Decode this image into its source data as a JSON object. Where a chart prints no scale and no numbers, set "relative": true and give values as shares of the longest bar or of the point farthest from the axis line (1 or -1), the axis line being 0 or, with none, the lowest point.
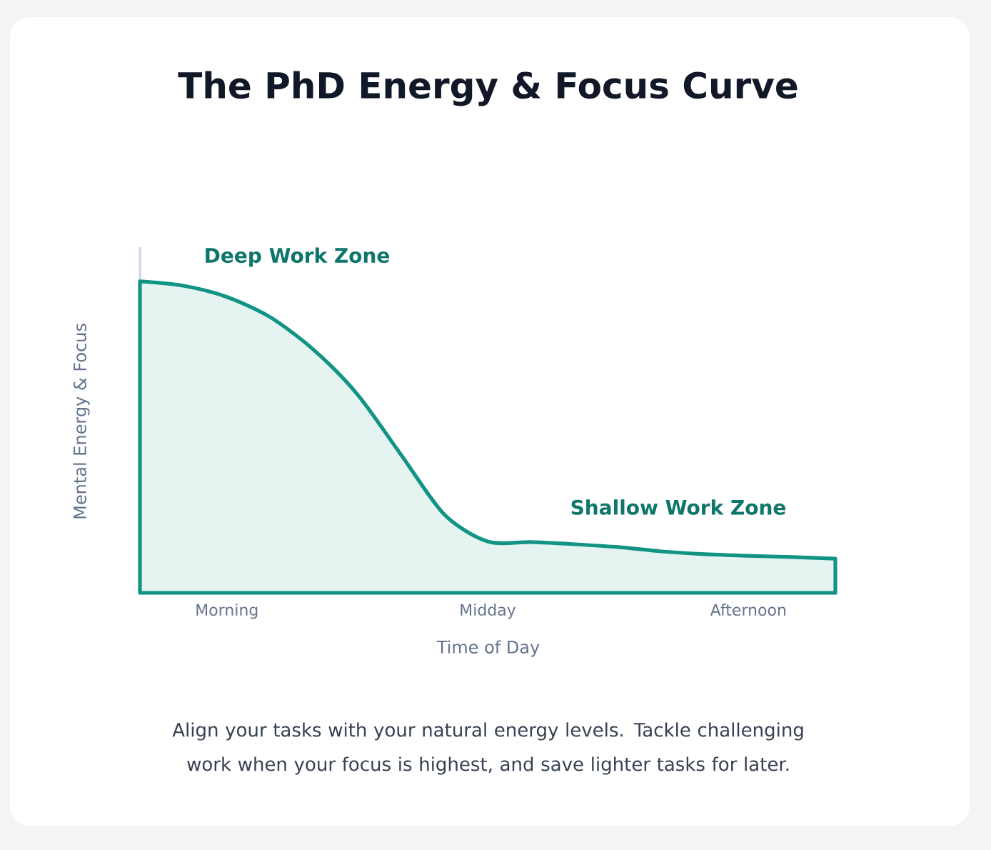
{
  "chart_data": {
    "type": "area",
    "title": "The PhD Energy & Focus Curve",
    "xlabel": "Time of Day",
    "ylabel": "Mental Energy & Focus",
    "categories": [
      null,
      null,
      "Morning",
      null,
      null,
      null,
      null,
      null,
      "Midday",
      null,
      null,
      null,
      null,
      null,
      "Afternoon",
      null,
      null
    ],
    "values": [
      1.0,
      0.986,
      0.95,
      0.885,
      0.78,
      0.638,
      0.445,
      0.252,
      0.165,
      0.163,
      0.156,
      0.147,
      0.133,
      0.124,
      0.119,
      0.115,
      0.11
    ],
    "color": "#119484",
    "relative": true,
    "annotations": [
      "Deep Work Zone",
      "Shallow Work Zone",
      "Align your tasks with your natural energy levels. Tackle challenging work when your focus is highest, and save lighter tasks for later."
    ]
  }
}
